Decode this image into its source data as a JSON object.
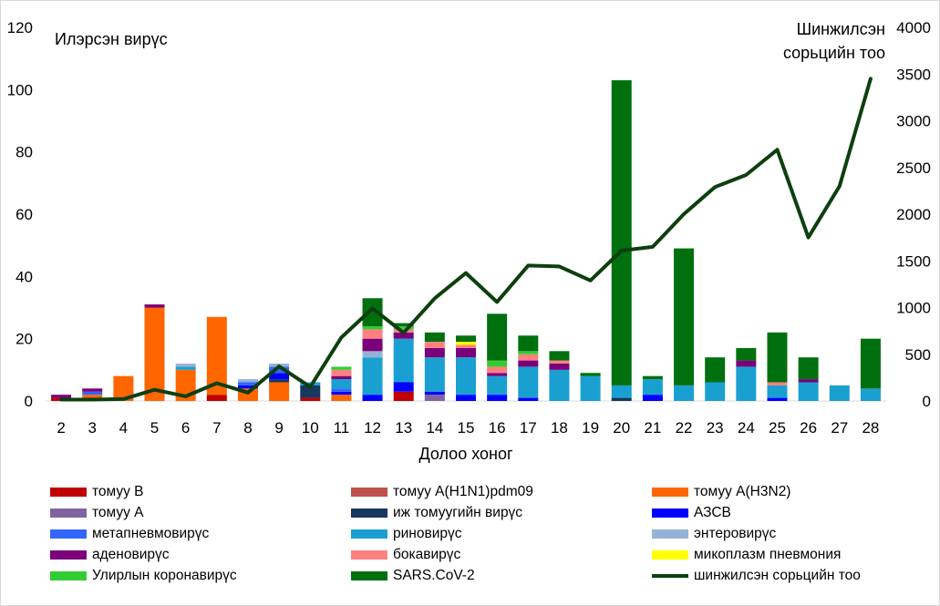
{
  "chart_data": {
    "type": "bar",
    "stacked": true,
    "y_left_label": "Илэрсэн вирүс",
    "y_right_label_lines": [
      "Шинжилсэн",
      "сорьцийн тоо"
    ],
    "xlabel": "Долоо хоног",
    "ylim_left": [
      0,
      120
    ],
    "ylim_right": [
      0,
      4000
    ],
    "yticks_left": [
      0,
      20,
      40,
      60,
      80,
      100,
      120
    ],
    "yticks_right": [
      0,
      500,
      1000,
      1500,
      2000,
      2500,
      3000,
      3500,
      4000
    ],
    "grid": false,
    "legend_position": "bottom",
    "categories": [
      "2",
      "3",
      "4",
      "5",
      "6",
      "7",
      "8",
      "9",
      "10",
      "11",
      "12",
      "13",
      "14",
      "15",
      "16",
      "17",
      "18",
      "19",
      "20",
      "21",
      "22",
      "23",
      "24",
      "25",
      "26",
      "27",
      "28"
    ],
    "series": [
      {
        "name": "томуу B",
        "color": "#c00000",
        "values": [
          1,
          0,
          0,
          0,
          0,
          2,
          0,
          0,
          1,
          0,
          0,
          3,
          0,
          0,
          0,
          0,
          0,
          0,
          0,
          0,
          0,
          0,
          0,
          0,
          0,
          0,
          0
        ]
      },
      {
        "name": "томуу A(H1N1)pdm09",
        "color": "#c0504d",
        "values": [
          0,
          0,
          0,
          0,
          0,
          0,
          0,
          0,
          0,
          0,
          0,
          0,
          0,
          0,
          0,
          0,
          0,
          0,
          0,
          0,
          0,
          0,
          0,
          0,
          0,
          0,
          0
        ]
      },
      {
        "name": "томуу A(H3N2)",
        "color": "#ff6600",
        "values": [
          0,
          2,
          8,
          30,
          10,
          25,
          4,
          6,
          0,
          2,
          0,
          0,
          0,
          0,
          0,
          0,
          0,
          0,
          0,
          0,
          0,
          0,
          0,
          0,
          0,
          0,
          0
        ]
      },
      {
        "name": "томуу A",
        "color": "#8064a2",
        "values": [
          0,
          0,
          0,
          0,
          0,
          0,
          0,
          0,
          0,
          0,
          0,
          0,
          2,
          0,
          0,
          0,
          0,
          0,
          0,
          0,
          0,
          0,
          0,
          0,
          0,
          0,
          0
        ]
      },
      {
        "name": "иж томуугийн вирүс",
        "color": "#17375e",
        "values": [
          0,
          0,
          0,
          0,
          0,
          0,
          0,
          1,
          4,
          0,
          0,
          0,
          0,
          0,
          0,
          0,
          0,
          0,
          1,
          0,
          0,
          0,
          0,
          0,
          0,
          0,
          0
        ]
      },
      {
        "name": "АЗСВ",
        "color": "#0000ff",
        "values": [
          0,
          0,
          0,
          0,
          0,
          0,
          1,
          2,
          0,
          1,
          2,
          3,
          1,
          2,
          2,
          1,
          0,
          0,
          0,
          2,
          0,
          0,
          0,
          1,
          0,
          0,
          0
        ]
      },
      {
        "name": "метапневмовирүс",
        "color": "#3366ff",
        "values": [
          0,
          1,
          0,
          0,
          0,
          0,
          1,
          2,
          0,
          1,
          0,
          0,
          0,
          0,
          0,
          0,
          0,
          0,
          0,
          0,
          0,
          0,
          0,
          0,
          0,
          0,
          0
        ]
      },
      {
        "name": "риновирүс",
        "color": "#1aa0d0",
        "values": [
          0,
          0,
          0,
          0,
          1,
          0,
          0,
          0,
          1,
          3,
          12,
          14,
          11,
          12,
          6,
          10,
          10,
          8,
          4,
          5,
          5,
          6,
          11,
          4,
          6,
          5,
          4
        ]
      },
      {
        "name": "энтеровирүс",
        "color": "#95b3d7",
        "values": [
          0,
          0,
          0,
          0,
          1,
          0,
          1,
          1,
          0,
          0,
          2,
          0,
          0,
          0,
          0,
          0,
          0,
          0,
          0,
          0,
          0,
          0,
          0,
          0,
          0,
          0,
          0
        ]
      },
      {
        "name": "аденовирүс",
        "color": "#7b007b",
        "values": [
          1,
          1,
          0,
          1,
          0,
          0,
          0,
          0,
          0,
          1,
          4,
          2,
          3,
          3,
          1,
          2,
          2,
          0,
          0,
          0,
          0,
          0,
          2,
          0,
          1,
          0,
          0
        ]
      },
      {
        "name": "бокавирүс",
        "color": "#ff8080",
        "values": [
          0,
          0,
          0,
          0,
          0,
          0,
          0,
          0,
          0,
          2,
          3,
          1,
          2,
          1,
          2,
          2,
          1,
          0,
          0,
          0,
          0,
          0,
          0,
          1,
          0,
          0,
          0
        ]
      },
      {
        "name": "микоплазм пневмония",
        "color": "#ffff00",
        "values": [
          0,
          0,
          0,
          0,
          0,
          0,
          0,
          0,
          0,
          0,
          0,
          0,
          0,
          1,
          0,
          0,
          0,
          0,
          0,
          0,
          0,
          0,
          0,
          0,
          0,
          0,
          0
        ]
      },
      {
        "name": "Улирлын коронавирүс",
        "color": "#33cc33",
        "values": [
          0,
          0,
          0,
          0,
          0,
          0,
          0,
          0,
          0,
          1,
          1,
          1,
          0,
          0,
          2,
          1,
          0,
          0,
          0,
          0,
          0,
          0,
          0,
          0,
          0,
          0,
          0
        ]
      },
      {
        "name": "SARS.CoV-2",
        "color": "#00700f",
        "values": [
          0,
          0,
          0,
          0,
          0,
          0,
          0,
          0,
          0,
          0,
          9,
          1,
          3,
          2,
          15,
          5,
          3,
          1,
          98,
          1,
          44,
          8,
          4,
          16,
          7,
          0,
          16
        ]
      }
    ],
    "line_series": {
      "name": "шинжилсэн сорьцийн тоо",
      "color": "#0e3f0e",
      "axis": "right",
      "values": [
        15,
        15,
        20,
        120,
        50,
        190,
        90,
        370,
        150,
        680,
        990,
        730,
        1100,
        1370,
        1060,
        1450,
        1440,
        1290,
        1610,
        1650,
        2000,
        2290,
        2420,
        2690,
        1750,
        2300,
        3450
      ]
    }
  }
}
